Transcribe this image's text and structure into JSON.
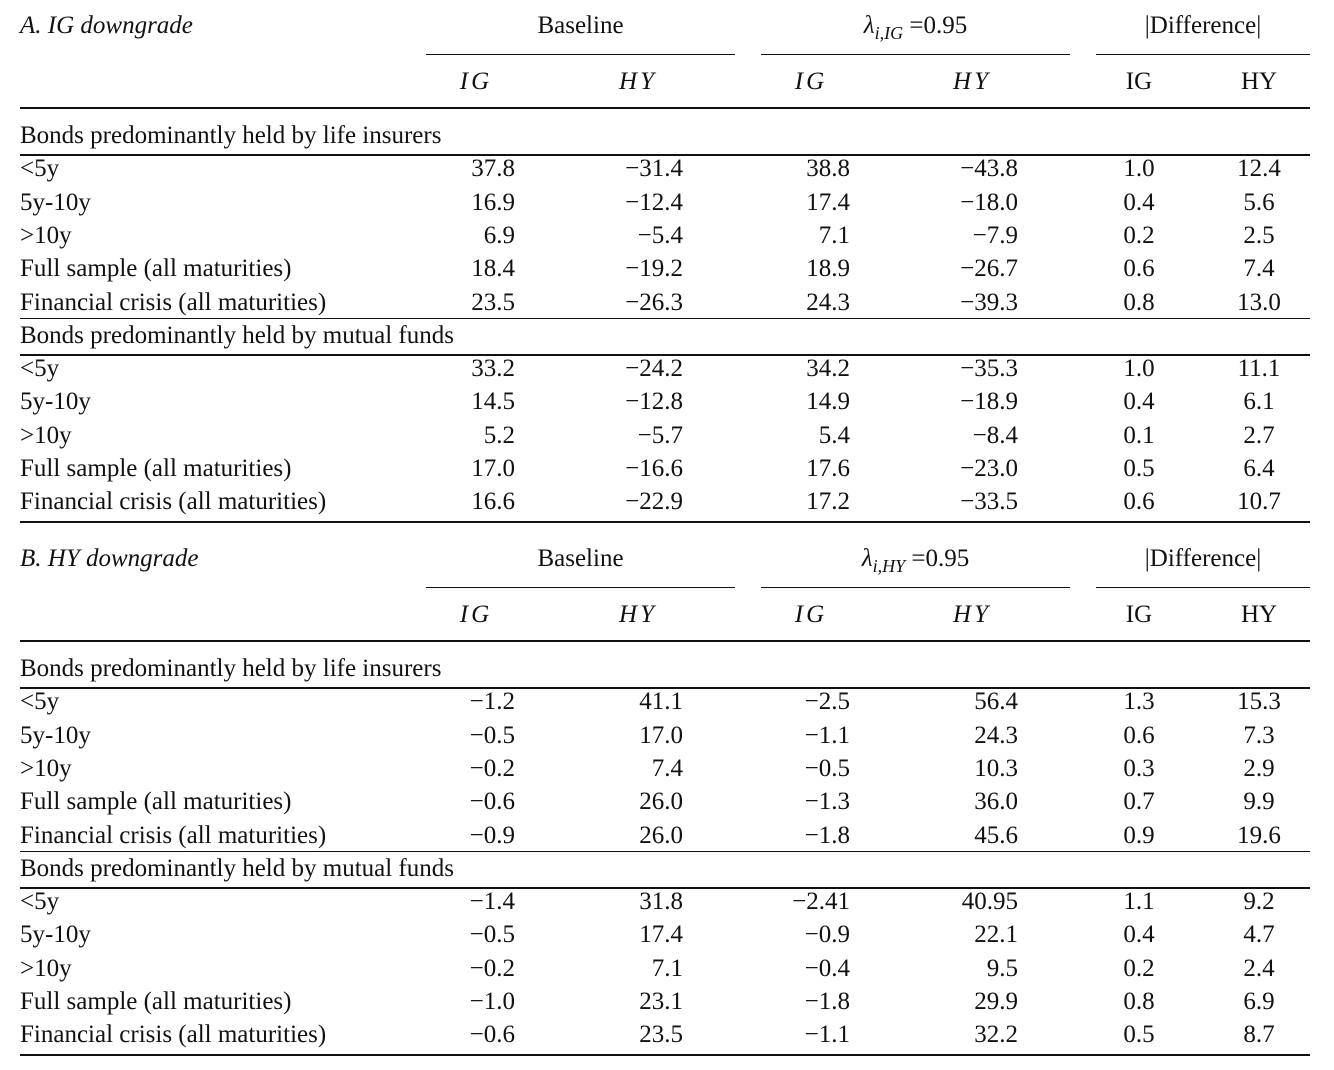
{
  "panels": [
    {
      "title": "A. IG downgrade",
      "group_headers": [
        {
          "label": "Baseline"
        },
        {
          "lambda": "λ",
          "subscript": "i,IG",
          "suffix": " =0.95"
        },
        {
          "label": "|Difference|"
        }
      ],
      "col_headers": [
        "IG",
        "HY",
        "IG",
        "HY",
        "IG",
        "HY"
      ],
      "sections": [
        {
          "title": "Bonds predominantly held by life insurers",
          "rows": [
            {
              "label": "<5y",
              "values": [
                "37.8",
                "−31.4",
                "38.8",
                "−43.8",
                "1.0",
                "12.4"
              ]
            },
            {
              "label": "5y-10y",
              "values": [
                "16.9",
                "−12.4",
                "17.4",
                "−18.0",
                "0.4",
                "5.6"
              ]
            },
            {
              "label": ">10y",
              "values": [
                "6.9",
                "−5.4",
                "7.1",
                "−7.9",
                "0.2",
                "2.5"
              ]
            },
            {
              "label": "Full sample (all maturities)",
              "values": [
                "18.4",
                "−19.2",
                "18.9",
                "−26.7",
                "0.6",
                "7.4"
              ]
            },
            {
              "label": "Financial crisis (all maturities)",
              "values": [
                "23.5",
                "−26.3",
                "24.3",
                "−39.3",
                "0.8",
                "13.0"
              ]
            }
          ]
        },
        {
          "title": "Bonds predominantly held by mutual funds",
          "rows": [
            {
              "label": "<5y",
              "values": [
                "33.2",
                "−24.2",
                "34.2",
                "−35.3",
                "1.0",
                "11.1"
              ]
            },
            {
              "label": "5y-10y",
              "values": [
                "14.5",
                "−12.8",
                "14.9",
                "−18.9",
                "0.4",
                "6.1"
              ]
            },
            {
              "label": ">10y",
              "values": [
                "5.2",
                "−5.7",
                "5.4",
                "−8.4",
                "0.1",
                "2.7"
              ]
            },
            {
              "label": "Full sample (all maturities)",
              "values": [
                "17.0",
                "−16.6",
                "17.6",
                "−23.0",
                "0.5",
                "6.4"
              ]
            },
            {
              "label": "Financial crisis (all maturities)",
              "values": [
                "16.6",
                "−22.9",
                "17.2",
                "−33.5",
                "0.6",
                "10.7"
              ]
            }
          ]
        }
      ]
    },
    {
      "title": "B. HY downgrade",
      "group_headers": [
        {
          "label": "Baseline"
        },
        {
          "lambda": "λ",
          "subscript": "i,HY",
          "suffix": " =0.95"
        },
        {
          "label": "|Difference|"
        }
      ],
      "col_headers": [
        "IG",
        "HY",
        "IG",
        "HY",
        "IG",
        "HY"
      ],
      "sections": [
        {
          "title": "Bonds predominantly held by life insurers",
          "rows": [
            {
              "label": "<5y",
              "values": [
                "−1.2",
                "41.1",
                "−2.5",
                "56.4",
                "1.3",
                "15.3"
              ]
            },
            {
              "label": "5y-10y",
              "values": [
                "−0.5",
                "17.0",
                "−1.1",
                "24.3",
                "0.6",
                "7.3"
              ]
            },
            {
              "label": ">10y",
              "values": [
                "−0.2",
                "7.4",
                "−0.5",
                "10.3",
                "0.3",
                "2.9"
              ]
            },
            {
              "label": "Full sample (all maturities)",
              "values": [
                "−0.6",
                "26.0",
                "−1.3",
                "36.0",
                "0.7",
                "9.9"
              ]
            },
            {
              "label": "Financial crisis (all maturities)",
              "values": [
                "−0.9",
                "26.0",
                "−1.8",
                "45.6",
                "0.9",
                "19.6"
              ]
            }
          ]
        },
        {
          "title": "Bonds predominantly held by mutual funds",
          "rows": [
            {
              "label": "<5y",
              "values": [
                "−1.4",
                "31.8",
                "−2.41",
                "40.95",
                "1.1",
                "9.2"
              ]
            },
            {
              "label": "5y-10y",
              "values": [
                "−0.5",
                "17.4",
                "−0.9",
                "22.1",
                "0.4",
                "4.7"
              ]
            },
            {
              "label": ">10y",
              "values": [
                "−0.2",
                "7.1",
                "−0.4",
                "9.5",
                "0.2",
                "2.4"
              ]
            },
            {
              "label": "Full sample (all maturities)",
              "values": [
                "−1.0",
                "23.1",
                "−1.8",
                "29.9",
                "0.8",
                "6.9"
              ]
            },
            {
              "label": "Financial crisis (all maturities)",
              "values": [
                "−0.6",
                "23.5",
                "−1.1",
                "32.2",
                "0.5",
                "8.7"
              ]
            }
          ]
        }
      ]
    }
  ]
}
